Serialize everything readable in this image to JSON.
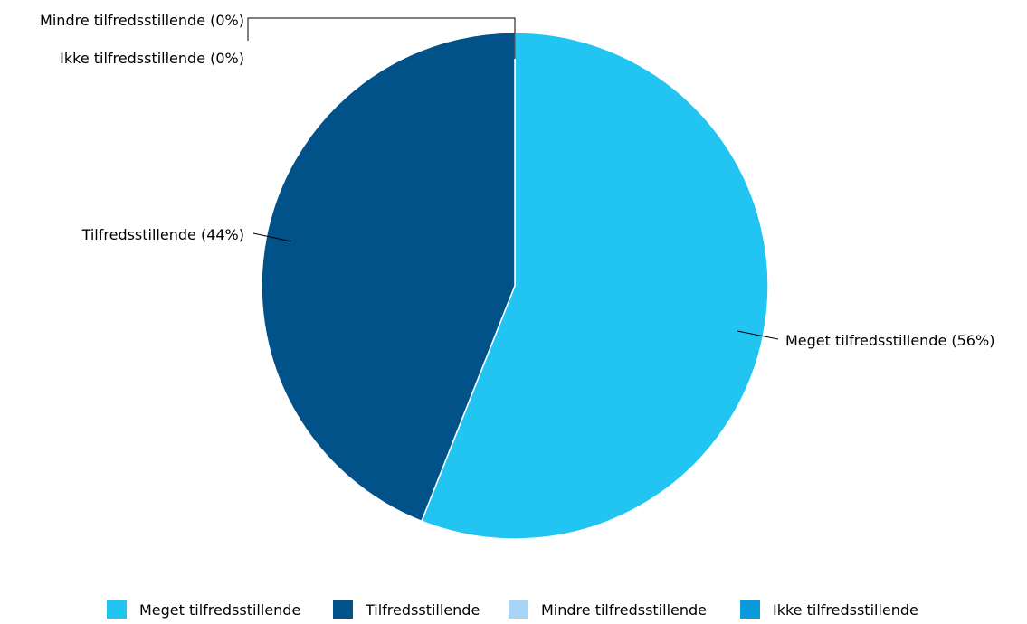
{
  "chart_data": {
    "type": "pie",
    "categories": [
      "Meget tilfredsstillende",
      "Tilfredsstillende",
      "Mindre tilfredsstillende",
      "Ikke tilfredsstillende"
    ],
    "values": [
      56,
      44,
      0,
      0
    ],
    "unit": "%",
    "slice_labels": [
      "Meget tilfredsstillende (56%)",
      "Tilfredsstillende (44%)",
      "Mindre tilfredsstillende (0%)",
      "Ikke tilfredsstillende (0%)"
    ],
    "colors": [
      "#22c4f2",
      "#005288",
      "#a8d5f5",
      "#0b9bdc"
    ],
    "legend_position": "bottom"
  },
  "legend": [
    {
      "label": "Meget tilfredsstillende",
      "color": "#22c4f2"
    },
    {
      "label": "Tilfredsstillende",
      "color": "#005288"
    },
    {
      "label": "Mindre tilfredsstillende",
      "color": "#a8d5f5"
    },
    {
      "label": "Ikke tilfredsstillende",
      "color": "#0b9bdc"
    }
  ]
}
